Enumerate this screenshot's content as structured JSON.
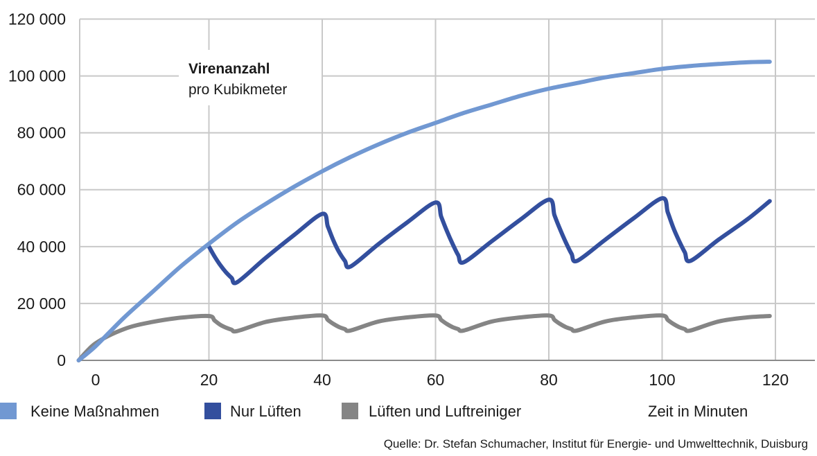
{
  "chart_data": {
    "type": "line",
    "title": "Virenanzahl",
    "subtitle": "pro Kubikmeter",
    "xlabel": "Zeit in Minuten",
    "ylabel": "",
    "xlim": [
      -3,
      130
    ],
    "ylim": [
      0,
      120000
    ],
    "x_ticks": [
      0,
      20,
      40,
      60,
      80,
      100,
      120
    ],
    "y_ticks": [
      0,
      20000,
      40000,
      60000,
      80000,
      100000,
      120000
    ],
    "x_tick_labels": [
      "0",
      "20",
      "40",
      "60",
      "80",
      "100",
      "120"
    ],
    "y_tick_labels": [
      "0",
      "20 000",
      "40 000",
      "60 000",
      "80 000",
      "100 000",
      "120 000"
    ],
    "grid": true,
    "legend_position": "bottom",
    "series": [
      {
        "name": "Keine Maßnahmen",
        "color": "#7198d2",
        "x": [
          -3,
          0,
          5,
          10,
          15,
          20,
          25,
          30,
          35,
          40,
          45,
          50,
          55,
          60,
          65,
          70,
          75,
          80,
          85,
          90,
          95,
          100,
          105,
          110,
          115,
          119
        ],
        "values": [
          0,
          5000,
          15000,
          24000,
          33000,
          41000,
          48500,
          55000,
          61000,
          66500,
          71500,
          76000,
          80000,
          83500,
          87000,
          90000,
          93000,
          95500,
          97500,
          99500,
          101000,
          102500,
          103500,
          104200,
          104800,
          105000
        ]
      },
      {
        "name": "Nur Lüften",
        "color": "#334f9e",
        "x": [
          20,
          21,
          22,
          23,
          24,
          25,
          30,
          35,
          40,
          41,
          42,
          43,
          44,
          45,
          50,
          55,
          60,
          61,
          62,
          63,
          64,
          65,
          70,
          75,
          80,
          81,
          82,
          83,
          84,
          85,
          90,
          95,
          100,
          101,
          102,
          103,
          104,
          105,
          110,
          115,
          119
        ],
        "values": [
          40000,
          36500,
          33500,
          31000,
          29000,
          27500,
          36000,
          44000,
          51500,
          47000,
          42000,
          38000,
          35000,
          33000,
          41000,
          48500,
          55500,
          50500,
          45500,
          41000,
          37000,
          34500,
          42000,
          49500,
          56500,
          51000,
          46000,
          41500,
          37500,
          35000,
          42500,
          50000,
          57000,
          52000,
          46500,
          42000,
          38000,
          35000,
          42500,
          49500,
          56000
        ]
      },
      {
        "name": "Lüften und Luftreiniger",
        "color": "#858585",
        "x": [
          -3,
          0,
          5,
          10,
          15,
          20,
          21,
          22,
          23,
          24,
          25,
          30,
          35,
          40,
          41,
          42,
          43,
          44,
          45,
          50,
          55,
          60,
          61,
          62,
          63,
          64,
          65,
          70,
          75,
          80,
          81,
          82,
          83,
          84,
          85,
          90,
          95,
          100,
          101,
          102,
          103,
          104,
          105,
          110,
          115,
          119
        ],
        "values": [
          0,
          6000,
          11000,
          13500,
          15000,
          15600,
          14000,
          12500,
          11500,
          10800,
          10300,
          13500,
          15000,
          15800,
          14200,
          12800,
          11700,
          11000,
          10500,
          13700,
          15100,
          15800,
          14200,
          12800,
          11700,
          11000,
          10500,
          13700,
          15100,
          15800,
          14200,
          12800,
          11700,
          11000,
          10500,
          13700,
          15100,
          15800,
          14200,
          12800,
          11700,
          11000,
          10500,
          13700,
          15100,
          15600
        ]
      }
    ]
  },
  "source": "Quelle: Dr. Stefan Schumacher, Institut für Energie- und Umwelttechnik, Duisburg"
}
